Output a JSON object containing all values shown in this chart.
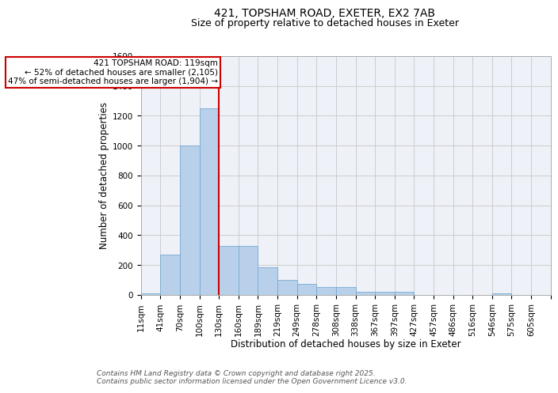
{
  "title_line1": "421, TOPSHAM ROAD, EXETER, EX2 7AB",
  "title_line2": "Size of property relative to detached houses in Exeter",
  "xlabel": "Distribution of detached houses by size in Exeter",
  "ylabel": "Number of detached properties",
  "categories": [
    "11sqm",
    "41sqm",
    "70sqm",
    "100sqm",
    "130sqm",
    "160sqm",
    "189sqm",
    "219sqm",
    "249sqm",
    "278sqm",
    "308sqm",
    "338sqm",
    "367sqm",
    "397sqm",
    "427sqm",
    "457sqm",
    "486sqm",
    "516sqm",
    "546sqm",
    "575sqm",
    "605sqm"
  ],
  "values": [
    10,
    270,
    1000,
    1250,
    330,
    330,
    185,
    100,
    75,
    55,
    55,
    20,
    20,
    20,
    0,
    0,
    0,
    0,
    10,
    0,
    0
  ],
  "bar_color": "#b8d0ea",
  "bar_edge_color": "#7aaad0",
  "vline_x_index": 4,
  "vline_color": "#cc0000",
  "annotation_text": "421 TOPSHAM ROAD: 119sqm\n← 52% of detached houses are smaller (2,105)\n47% of semi-detached houses are larger (1,904) →",
  "annotation_box_color": "#ffffff",
  "annotation_box_edge": "#cc0000",
  "ylim": [
    0,
    1600
  ],
  "yticks": [
    0,
    200,
    400,
    600,
    800,
    1000,
    1200,
    1400,
    1600
  ],
  "grid_color": "#cccccc",
  "background_color": "#eef2f8",
  "footer_line1": "Contains HM Land Registry data © Crown copyright and database right 2025.",
  "footer_line2": "Contains public sector information licensed under the Open Government Licence v3.0.",
  "title_fontsize": 10,
  "subtitle_fontsize": 9,
  "axis_label_fontsize": 8.5,
  "tick_fontsize": 7.5,
  "annotation_fontsize": 7.5,
  "footer_fontsize": 6.5
}
